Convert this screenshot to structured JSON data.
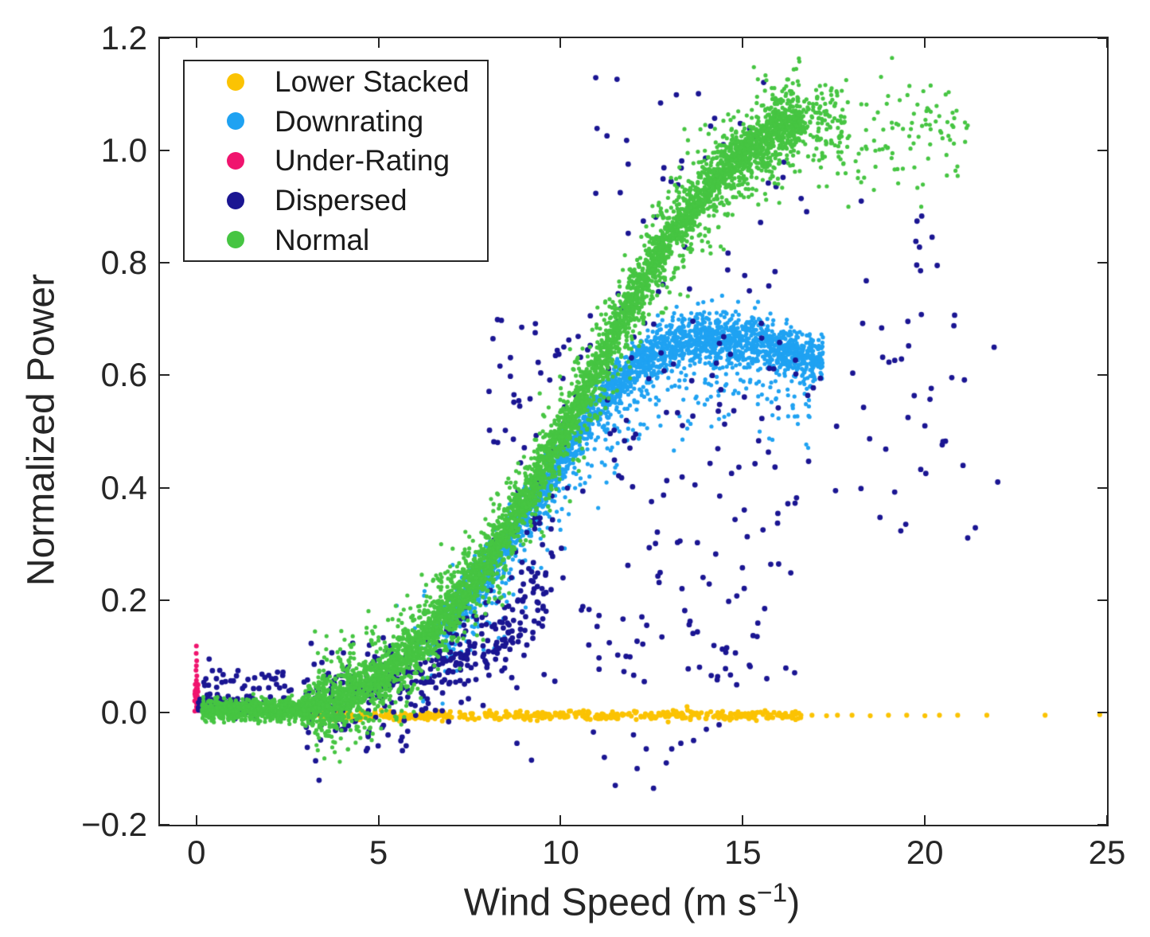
{
  "figure": {
    "background": "#ffffff",
    "ink_color": "#262626"
  },
  "chart_data": {
    "type": "scatter",
    "title": "",
    "xlabel": {
      "prefix": "Wind Speed (m s",
      "superscript": "−1",
      "suffix": ")"
    },
    "ylabel": "Normalized Power",
    "axes": {
      "xlim": [
        -1,
        25
      ],
      "ylim": [
        -0.2,
        1.2
      ],
      "xticks": [
        {
          "value": 0,
          "label": "0"
        },
        {
          "value": 5,
          "label": "5"
        },
        {
          "value": 10,
          "label": "10"
        },
        {
          "value": 15,
          "label": "15"
        },
        {
          "value": 20,
          "label": "20"
        },
        {
          "value": 25,
          "label": "25"
        }
      ],
      "yticks": [
        {
          "value": -0.2,
          "label": "−0.2"
        },
        {
          "value": 0.0,
          "label": "0.0"
        },
        {
          "value": 0.2,
          "label": "0.2"
        },
        {
          "value": 0.4,
          "label": "0.4"
        },
        {
          "value": 0.6,
          "label": "0.6"
        },
        {
          "value": 0.8,
          "label": "0.8"
        },
        {
          "value": 1.0,
          "label": "1.0"
        },
        {
          "value": 1.2,
          "label": "1.2"
        }
      ],
      "tick_length": 12,
      "tick_width": 2,
      "grid": false,
      "box": true
    },
    "legend": {
      "position": "top-left",
      "entries": [
        {
          "label": "Lower Stacked",
          "color": "#FBC303"
        },
        {
          "label": "Downrating",
          "color": "#1FA2F2"
        },
        {
          "label": "Under-Rating",
          "color": "#F0146E"
        },
        {
          "label": "Dispersed",
          "color": "#1A1592"
        },
        {
          "label": "Normal",
          "color": "#46C542"
        }
      ]
    },
    "seed": 42,
    "series": [
      {
        "name": "Lower Stacked",
        "color": "#FBC303",
        "marker_radius": 3.1,
        "clusters": [
          {
            "kind": "curve",
            "x_range": [
              2.9,
              16.6
            ],
            "sigma": 0.004,
            "n": 480,
            "anchors": [
              [
                2.9,
                -0.006
              ],
              [
                16.6,
                -0.005
              ]
            ]
          }
        ],
        "points": [
          [
            16.9,
            -0.005
          ],
          [
            17.3,
            -0.006
          ],
          [
            17.6,
            -0.005
          ],
          [
            18.0,
            -0.005
          ],
          [
            18.5,
            -0.006
          ],
          [
            19.0,
            -0.005
          ],
          [
            19.5,
            -0.005
          ],
          [
            20.0,
            -0.006
          ],
          [
            20.4,
            -0.005
          ],
          [
            20.9,
            -0.005
          ],
          [
            21.7,
            -0.005
          ],
          [
            23.3,
            -0.005
          ],
          [
            24.8,
            -0.004
          ]
        ]
      },
      {
        "name": "Downrating",
        "color": "#1FA2F2",
        "marker_radius": 2.6,
        "clusters": [
          {
            "kind": "curve",
            "x_range": [
              6.8,
              17.2
            ],
            "sigma": 0.022,
            "n": 2400,
            "anchors": [
              [
                6.8,
                0.155
              ],
              [
                8,
                0.25
              ],
              [
                9,
                0.35
              ],
              [
                10,
                0.45
              ],
              [
                11,
                0.545
              ],
              [
                12,
                0.615
              ],
              [
                13,
                0.655
              ],
              [
                14,
                0.668
              ],
              [
                15,
                0.662
              ],
              [
                16,
                0.648
              ],
              [
                17.2,
                0.625
              ]
            ]
          },
          {
            "kind": "curve",
            "x_range": [
              6.2,
              16.9
            ],
            "sigma": 0.05,
            "n": 430,
            "anchors": [
              [
                6.2,
                0.09
              ],
              [
                8,
                0.2
              ],
              [
                9,
                0.3
              ],
              [
                10,
                0.4
              ],
              [
                11,
                0.49
              ],
              [
                12,
                0.56
              ],
              [
                13,
                0.6
              ],
              [
                14,
                0.615
              ],
              [
                15,
                0.61
              ],
              [
                16,
                0.6
              ],
              [
                16.9,
                0.58
              ]
            ]
          }
        ],
        "points": [
          [
            5.5,
            0.19
          ],
          [
            5.8,
            0.105
          ],
          [
            6.0,
            0.15
          ],
          [
            5.4,
            0.08
          ],
          [
            6.1,
            0.12
          ]
        ]
      },
      {
        "name": "Under-Rating",
        "color": "#F0146E",
        "marker_radius": 3.0,
        "clusters": [
          {
            "kind": "box",
            "x_range": [
              -0.05,
              0.05
            ],
            "y_range": [
              0.0,
              0.05
            ],
            "n": 26
          }
        ],
        "points": [
          [
            0.0,
            0.057
          ],
          [
            0.012,
            0.065
          ],
          [
            -0.01,
            0.075
          ],
          [
            0.0,
            0.083
          ],
          [
            0.008,
            0.092
          ],
          [
            -0.005,
            0.105
          ],
          [
            0.0,
            0.118
          ]
        ]
      },
      {
        "name": "Dispersed",
        "color": "#1A1592",
        "marker_radius": 3.4,
        "clusters": [
          {
            "kind": "curve",
            "x_range": [
              0.05,
              1.7
            ],
            "sigma": 0.007,
            "n": 150,
            "anchors": [
              [
                0.05,
                0.012
              ],
              [
                1.7,
                0.01
              ]
            ]
          },
          {
            "kind": "box",
            "x_range": [
              0.15,
              3.0
            ],
            "y_range": [
              0.02,
              0.075
            ],
            "n": 45
          },
          {
            "kind": "curve",
            "x_range": [
              3.0,
              9.6
            ],
            "sigma": 0.045,
            "n": 380,
            "anchors": [
              [
                3,
                0.012
              ],
              [
                4.5,
                0.025
              ],
              [
                6,
                0.055
              ],
              [
                7.5,
                0.105
              ],
              [
                8.5,
                0.15
              ],
              [
                9.6,
                0.22
              ]
            ]
          },
          {
            "kind": "box",
            "x_range": [
              8.0,
              16.5
            ],
            "y_range": [
              0.04,
              0.72
            ],
            "n": 215
          },
          {
            "kind": "box",
            "x_range": [
              10.8,
              16.5
            ],
            "y_range": [
              0.68,
              1.13
            ],
            "n": 52
          },
          {
            "kind": "box",
            "x_range": [
              16.5,
              21.5
            ],
            "y_range": [
              0.3,
              0.92
            ],
            "n": 52
          }
        ],
        "points": [
          [
            0.35,
            0.095
          ],
          [
            0.55,
            0.06
          ],
          [
            1.1,
            0.065
          ],
          [
            2.2,
            0.05
          ],
          [
            2.6,
            0.04
          ],
          [
            0.8,
            0.055
          ],
          [
            21.9,
            0.65
          ],
          [
            22.0,
            0.41
          ],
          [
            20.0,
            0.51
          ],
          [
            8.8,
            -0.055
          ],
          [
            9.2,
            -0.085
          ],
          [
            10.9,
            -0.035
          ],
          [
            11.2,
            -0.08
          ],
          [
            11.5,
            -0.13
          ],
          [
            12.0,
            -0.04
          ],
          [
            12.1,
            -0.1
          ],
          [
            12.35,
            -0.065
          ],
          [
            12.55,
            -0.135
          ],
          [
            12.9,
            -0.09
          ],
          [
            13.05,
            -0.065
          ],
          [
            13.3,
            -0.055
          ],
          [
            13.65,
            -0.05
          ],
          [
            14.0,
            -0.03
          ],
          [
            14.35,
            -0.022
          ]
        ]
      },
      {
        "name": "Normal",
        "color": "#46C542",
        "marker_radius": 2.6,
        "clusters": [
          {
            "kind": "curve",
            "x_range": [
              0.15,
              3.1
            ],
            "sigma": 0.009,
            "n": 800,
            "anchors": [
              [
                0.15,
                0.004
              ],
              [
                3.1,
                0.006
              ]
            ]
          },
          {
            "kind": "curve",
            "x_range": [
              2.9,
              16.6
            ],
            "sigma": 0.018,
            "n": 3000,
            "anchors": [
              [
                2.9,
                0.006
              ],
              [
                3.5,
                0.012
              ],
              [
                4,
                0.022
              ],
              [
                5,
                0.062
              ],
              [
                6,
                0.115
              ],
              [
                7,
                0.185
              ],
              [
                8,
                0.27
              ],
              [
                9,
                0.375
              ],
              [
                10,
                0.49
              ],
              [
                11,
                0.615
              ],
              [
                12,
                0.735
              ],
              [
                13,
                0.845
              ],
              [
                14,
                0.93
              ],
              [
                15,
                0.995
              ],
              [
                16,
                1.04
              ],
              [
                16.6,
                1.05
              ]
            ]
          },
          {
            "kind": "curve",
            "x_range": [
              3.2,
              16.6
            ],
            "sigma": 0.045,
            "n": 2400,
            "anchors": [
              [
                2.9,
                0.006
              ],
              [
                3.5,
                0.012
              ],
              [
                4,
                0.022
              ],
              [
                5,
                0.062
              ],
              [
                6,
                0.115
              ],
              [
                7,
                0.185
              ],
              [
                8,
                0.27
              ],
              [
                9,
                0.375
              ],
              [
                10,
                0.49
              ],
              [
                11,
                0.615
              ],
              [
                12,
                0.735
              ],
              [
                13,
                0.845
              ],
              [
                14,
                0.93
              ],
              [
                15,
                0.995
              ],
              [
                16,
                1.04
              ],
              [
                16.6,
                1.05
              ]
            ]
          },
          {
            "kind": "curve",
            "x_range": [
              16.6,
              17.8
            ],
            "sigma": 0.04,
            "n": 130,
            "anchors": [
              [
                16.6,
                1.048
              ],
              [
                17.8,
                1.035
              ]
            ]
          },
          {
            "kind": "curve",
            "x_range": [
              17.8,
              21.2
            ],
            "sigma": 0.045,
            "n": 95,
            "anchors": [
              [
                17.8,
                1.03
              ],
              [
                18.4,
                1.015
              ],
              [
                19.2,
                1.02
              ],
              [
                20.2,
                1.04
              ],
              [
                21.2,
                1.04
              ]
            ]
          }
        ],
        "points": [
          [
            18.6,
            0.93
          ],
          [
            19.9,
            0.9
          ],
          [
            20.9,
            0.955
          ],
          [
            17.9,
            0.9
          ],
          [
            21.1,
            1.05
          ]
        ]
      }
    ]
  }
}
